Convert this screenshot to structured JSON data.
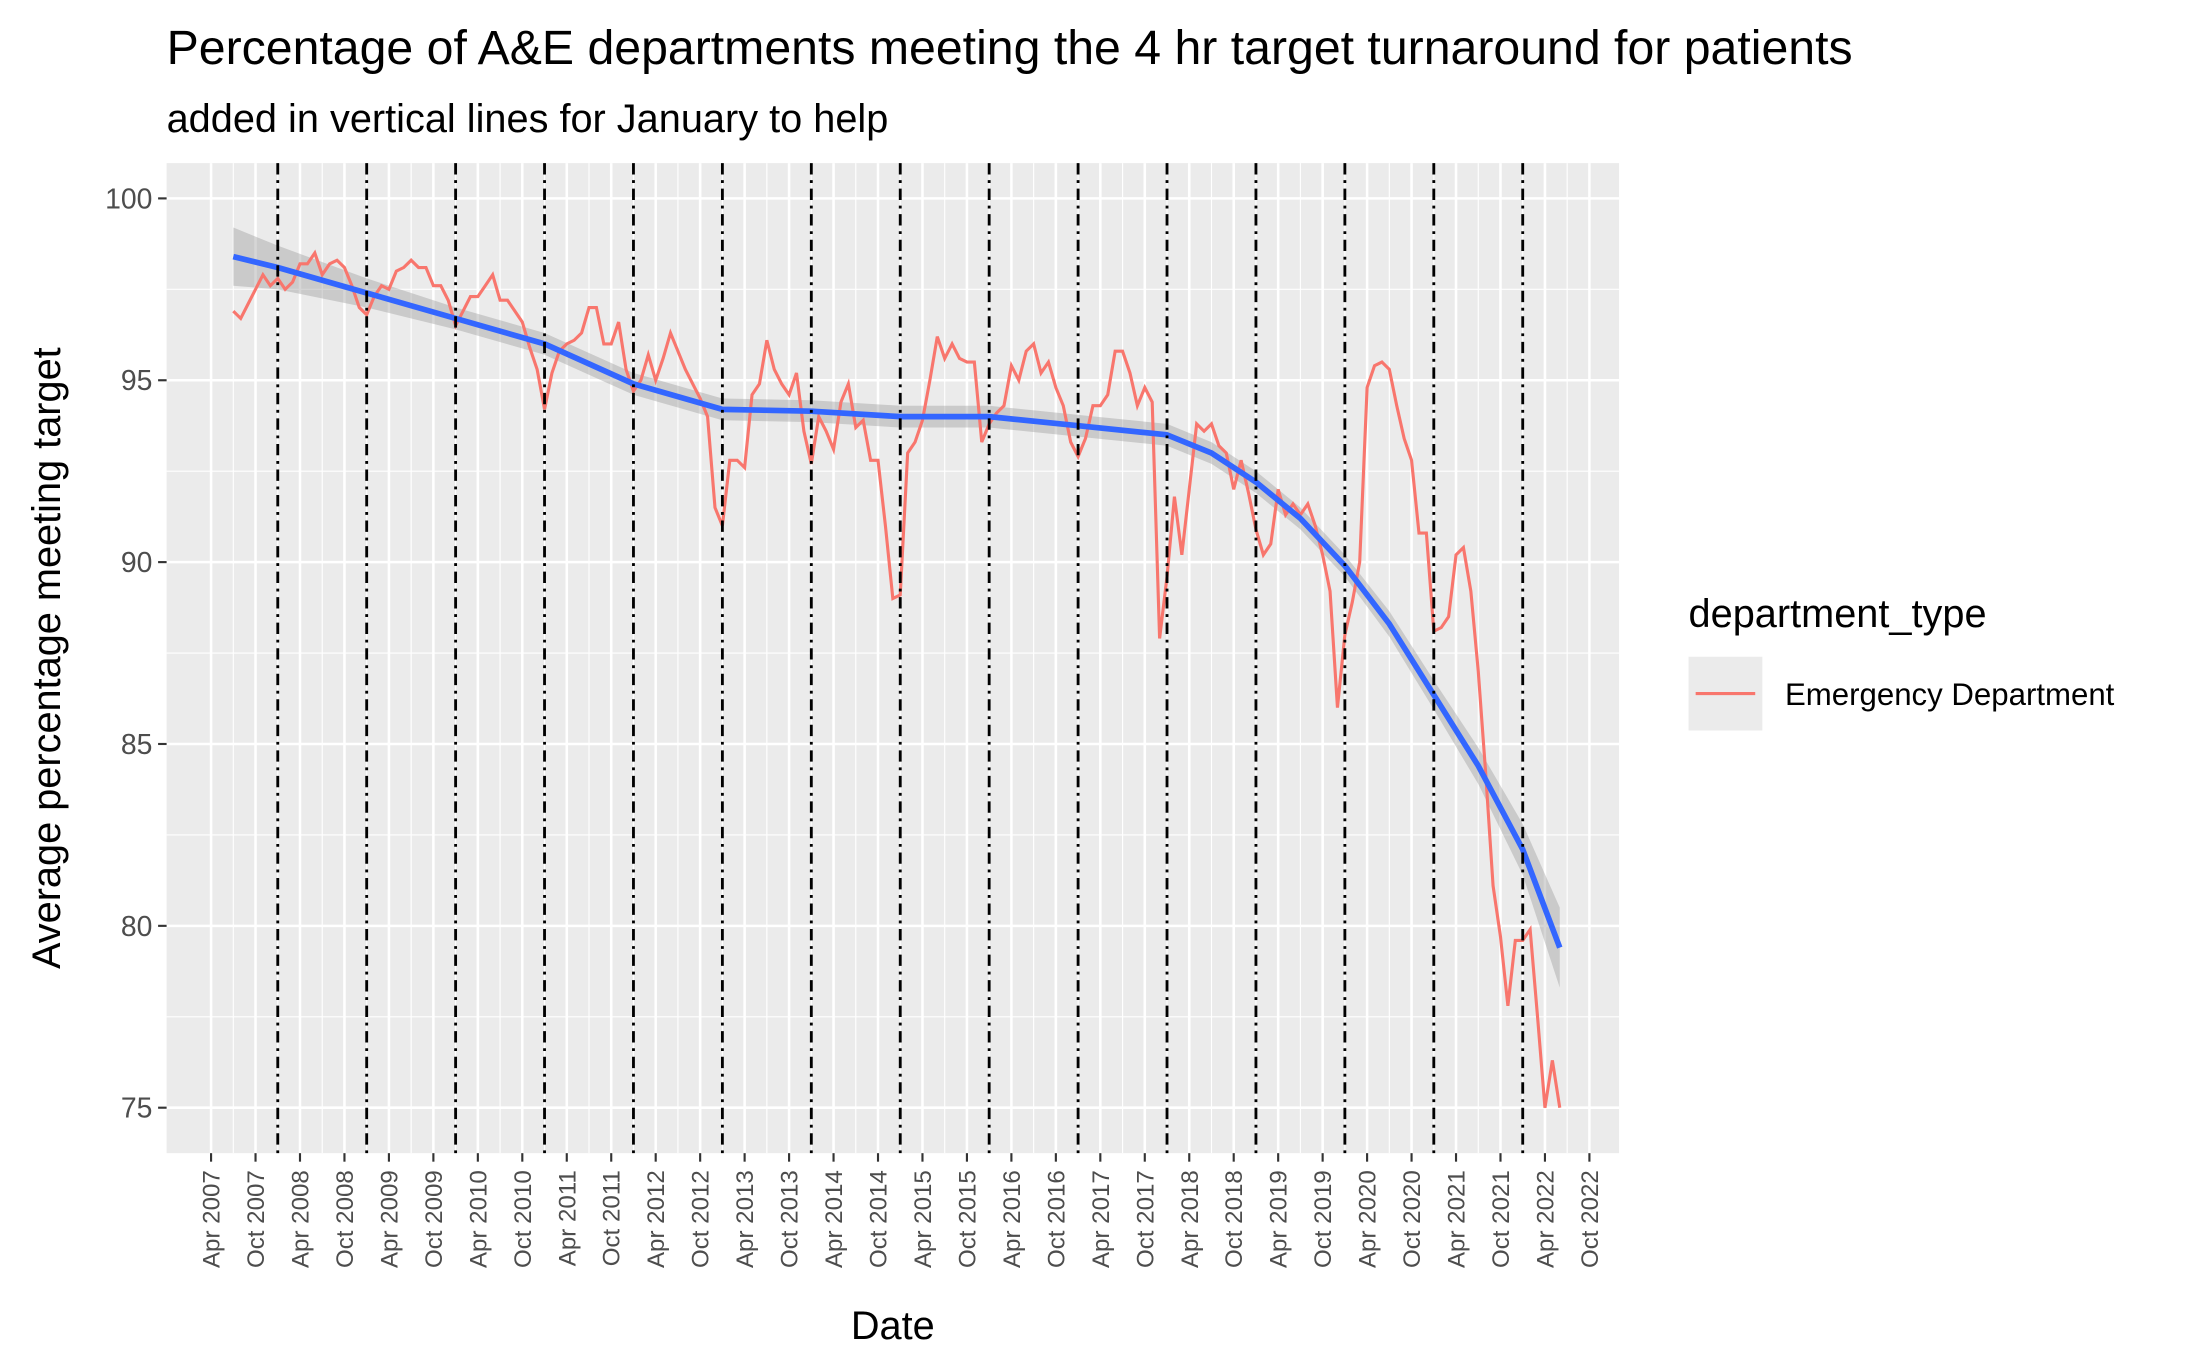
{
  "chart_data": {
    "type": "line",
    "title": "Percentage of A&E departments meeting the 4 hr target turnaround for patients",
    "subtitle": "added in vertical lines for January to help",
    "x_label": "Date",
    "y_label": "Average percentage meeting target",
    "legend_title": "department_type",
    "x": [
      "2007-07",
      "2007-08",
      "2007-09",
      "2007-10",
      "2007-11",
      "2007-12",
      "2008-01",
      "2008-02",
      "2008-03",
      "2008-04",
      "2008-05",
      "2008-06",
      "2008-07",
      "2008-08",
      "2008-09",
      "2008-10",
      "2008-11",
      "2008-12",
      "2009-01",
      "2009-02",
      "2009-03",
      "2009-04",
      "2009-05",
      "2009-06",
      "2009-07",
      "2009-08",
      "2009-09",
      "2009-10",
      "2009-11",
      "2009-12",
      "2010-01",
      "2010-02",
      "2010-03",
      "2010-04",
      "2010-05",
      "2010-06",
      "2010-07",
      "2010-08",
      "2010-09",
      "2010-10",
      "2010-11",
      "2010-12",
      "2011-01",
      "2011-02",
      "2011-03",
      "2011-04",
      "2011-05",
      "2011-06",
      "2011-07",
      "2011-08",
      "2011-09",
      "2011-10",
      "2011-11",
      "2011-12",
      "2012-01",
      "2012-02",
      "2012-03",
      "2012-04",
      "2012-05",
      "2012-06",
      "2012-07",
      "2012-08",
      "2012-09",
      "2012-10",
      "2012-11",
      "2012-12",
      "2013-01",
      "2013-02",
      "2013-03",
      "2013-04",
      "2013-05",
      "2013-06",
      "2013-07",
      "2013-08",
      "2013-09",
      "2013-10",
      "2013-11",
      "2013-12",
      "2014-01",
      "2014-02",
      "2014-03",
      "2014-04",
      "2014-05",
      "2014-06",
      "2014-07",
      "2014-08",
      "2014-09",
      "2014-10",
      "2014-11",
      "2014-12",
      "2015-01",
      "2015-02",
      "2015-03",
      "2015-04",
      "2015-05",
      "2015-06",
      "2015-07",
      "2015-08",
      "2015-09",
      "2015-10",
      "2015-11",
      "2015-12",
      "2016-01",
      "2016-02",
      "2016-03",
      "2016-04",
      "2016-05",
      "2016-06",
      "2016-07",
      "2016-08",
      "2016-09",
      "2016-10",
      "2016-11",
      "2016-12",
      "2017-01",
      "2017-02",
      "2017-03",
      "2017-04",
      "2017-05",
      "2017-06",
      "2017-07",
      "2017-08",
      "2017-09",
      "2017-10",
      "2017-11",
      "2017-12",
      "2018-01",
      "2018-02",
      "2018-03",
      "2018-04",
      "2018-05",
      "2018-06",
      "2018-07",
      "2018-08",
      "2018-09",
      "2018-10",
      "2018-11",
      "2018-12",
      "2019-01",
      "2019-02",
      "2019-03",
      "2019-04",
      "2019-05",
      "2019-06",
      "2019-07",
      "2019-08",
      "2019-09",
      "2019-10",
      "2019-11",
      "2019-12",
      "2020-01",
      "2020-02",
      "2020-03",
      "2020-04",
      "2020-05",
      "2020-06",
      "2020-07",
      "2020-08",
      "2020-09",
      "2020-10",
      "2020-11",
      "2020-12",
      "2021-01",
      "2021-02",
      "2021-03",
      "2021-04",
      "2021-05",
      "2021-06",
      "2021-07",
      "2021-08",
      "2021-09",
      "2021-10",
      "2021-11",
      "2021-12",
      "2022-01",
      "2022-02",
      "2022-03",
      "2022-04",
      "2022-05",
      "2022-06"
    ],
    "series": [
      {
        "name": "Emergency Department",
        "color": "#F8766D",
        "values": [
          96.9,
          96.7,
          97.1,
          97.5,
          97.9,
          97.6,
          97.8,
          97.5,
          97.7,
          98.2,
          98.2,
          98.5,
          97.9,
          98.2,
          98.3,
          98.1,
          97.6,
          97.0,
          96.8,
          97.3,
          97.6,
          97.5,
          98.0,
          98.1,
          98.3,
          98.1,
          98.1,
          97.6,
          97.6,
          97.2,
          96.5,
          96.9,
          97.3,
          97.3,
          97.6,
          97.9,
          97.2,
          97.2,
          96.9,
          96.6,
          95.9,
          95.3,
          94.2,
          95.2,
          95.8,
          96.0,
          96.1,
          96.3,
          97.0,
          97.0,
          96.0,
          96.0,
          96.6,
          95.3,
          94.7,
          95.0,
          95.7,
          95.0,
          95.6,
          96.3,
          95.8,
          95.3,
          94.9,
          94.5,
          94.0,
          91.5,
          91.0,
          92.8,
          92.8,
          92.6,
          94.6,
          94.9,
          96.1,
          95.3,
          94.9,
          94.6,
          95.2,
          93.6,
          92.7,
          94.0,
          93.6,
          93.1,
          94.4,
          94.9,
          93.7,
          93.9,
          92.8,
          92.8,
          91.0,
          89.0,
          89.1,
          93.0,
          93.3,
          93.9,
          95.0,
          96.2,
          95.6,
          96.0,
          95.6,
          95.5,
          95.5,
          93.3,
          93.8,
          94.1,
          94.3,
          95.4,
          95.0,
          95.8,
          96.0,
          95.2,
          95.5,
          94.8,
          94.3,
          93.3,
          92.9,
          93.4,
          94.3,
          94.3,
          94.6,
          95.8,
          95.8,
          95.2,
          94.3,
          94.8,
          94.4,
          87.9,
          89.6,
          91.8,
          90.2,
          92.0,
          93.8,
          93.6,
          93.8,
          93.2,
          93.0,
          92.0,
          92.8,
          91.9,
          90.9,
          90.2,
          90.5,
          92.0,
          91.3,
          91.6,
          91.3,
          91.6,
          91.0,
          90.2,
          89.2,
          86.0,
          88.0,
          88.9,
          90.0,
          94.8,
          95.4,
          95.5,
          95.3,
          94.3,
          93.4,
          92.8,
          90.8,
          90.8,
          88.1,
          88.2,
          88.5,
          90.2,
          90.4,
          89.2,
          87.0,
          84.2,
          81.1,
          79.7,
          77.8,
          79.6,
          79.6,
          79.9,
          77.5,
          75.0,
          76.3,
          75.0
        ]
      }
    ],
    "trend": {
      "color": "#3366FF",
      "x": [
        "2007-07",
        "2008-01",
        "2009-01",
        "2010-01",
        "2011-01",
        "2012-01",
        "2013-01",
        "2014-01",
        "2015-01",
        "2016-01",
        "2017-01",
        "2018-01",
        "2018-07",
        "2019-01",
        "2019-07",
        "2020-01",
        "2020-07",
        "2021-01",
        "2021-07",
        "2022-01",
        "2022-06"
      ],
      "values": [
        98.4,
        98.1,
        97.4,
        96.7,
        96.0,
        94.9,
        94.2,
        94.15,
        94.0,
        94.0,
        93.75,
        93.5,
        93.0,
        92.2,
        91.2,
        89.9,
        88.3,
        86.35,
        84.4,
        82.1,
        79.4
      ],
      "lower": [
        97.6,
        97.5,
        97.0,
        96.4,
        95.7,
        94.6,
        93.9,
        93.85,
        93.7,
        93.7,
        93.45,
        93.2,
        92.7,
        91.9,
        90.9,
        89.6,
        87.95,
        85.95,
        83.9,
        81.4,
        78.3
      ],
      "upper": [
        99.2,
        98.7,
        97.8,
        97.0,
        96.3,
        95.2,
        94.5,
        94.45,
        94.3,
        94.3,
        94.05,
        93.8,
        93.3,
        92.5,
        91.5,
        90.2,
        88.65,
        86.75,
        84.9,
        82.8,
        80.5
      ]
    },
    "xlim": [
      "2006-10",
      "2023-02"
    ],
    "ylim": [
      73.75,
      100.97
    ],
    "yticks": [
      75,
      80,
      85,
      90,
      95,
      100
    ],
    "xticks": [
      {
        "value": "2007-04",
        "label": "Apr 2007"
      },
      {
        "value": "2007-10",
        "label": "Oct 2007"
      },
      {
        "value": "2008-04",
        "label": "Apr 2008"
      },
      {
        "value": "2008-10",
        "label": "Oct 2008"
      },
      {
        "value": "2009-04",
        "label": "Apr 2009"
      },
      {
        "value": "2009-10",
        "label": "Oct 2009"
      },
      {
        "value": "2010-04",
        "label": "Apr 2010"
      },
      {
        "value": "2010-10",
        "label": "Oct 2010"
      },
      {
        "value": "2011-04",
        "label": "Apr 2011"
      },
      {
        "value": "2011-10",
        "label": "Oct 2011"
      },
      {
        "value": "2012-04",
        "label": "Apr 2012"
      },
      {
        "value": "2012-10",
        "label": "Oct 2012"
      },
      {
        "value": "2013-04",
        "label": "Apr 2013"
      },
      {
        "value": "2013-10",
        "label": "Oct 2013"
      },
      {
        "value": "2014-04",
        "label": "Apr 2014"
      },
      {
        "value": "2014-10",
        "label": "Oct 2014"
      },
      {
        "value": "2015-04",
        "label": "Apr 2015"
      },
      {
        "value": "2015-10",
        "label": "Oct 2015"
      },
      {
        "value": "2016-04",
        "label": "Apr 2016"
      },
      {
        "value": "2016-10",
        "label": "Oct 2016"
      },
      {
        "value": "2017-04",
        "label": "Apr 2017"
      },
      {
        "value": "2017-10",
        "label": "Oct 2017"
      },
      {
        "value": "2018-04",
        "label": "Apr 2018"
      },
      {
        "value": "2018-10",
        "label": "Oct 2018"
      },
      {
        "value": "2019-04",
        "label": "Apr 2019"
      },
      {
        "value": "2019-10",
        "label": "Oct 2019"
      },
      {
        "value": "2020-04",
        "label": "Apr 2020"
      },
      {
        "value": "2020-10",
        "label": "Oct 2020"
      },
      {
        "value": "2021-04",
        "label": "Apr 2021"
      },
      {
        "value": "2021-10",
        "label": "Oct 2021"
      },
      {
        "value": "2022-04",
        "label": "Apr 2022"
      },
      {
        "value": "2022-10",
        "label": "Oct 2022"
      }
    ],
    "vlines": [
      "2008-01",
      "2009-01",
      "2010-01",
      "2011-01",
      "2012-01",
      "2013-01",
      "2014-01",
      "2015-01",
      "2016-01",
      "2017-01",
      "2018-01",
      "2019-01",
      "2020-01",
      "2021-01",
      "2022-01"
    ],
    "grid": true
  }
}
